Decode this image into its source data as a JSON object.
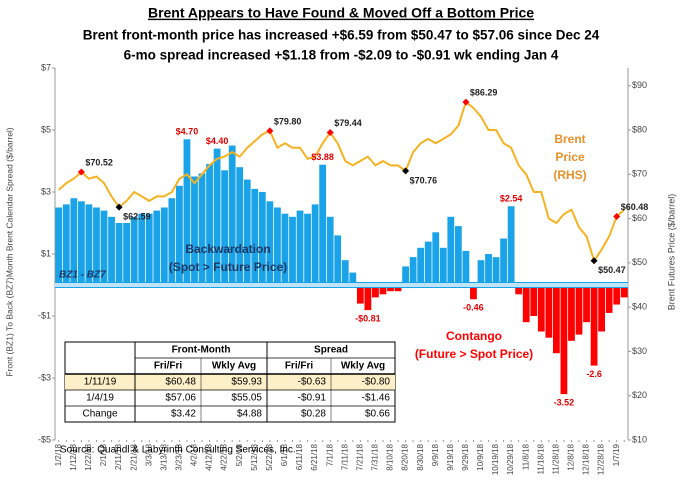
{
  "chart_data": {
    "type": "bar-line",
    "title": "Brent Appears to Have Found & Moved Off a Bottom Price",
    "subtitle": [
      "Brent front-month price has increased +$6.59 from $50.47 to $57.06 since Dec 24",
      "6-mo spread increased +$1.18 from -$2.09 to -$0.91 wk ending Jan 4"
    ],
    "ylabel": "Front (BZ1) To Back (BZ7)Month Brent Calendar Spread ($/barrel)",
    "y2label": "Brent Futures Price ($/barrel)",
    "categories": [
      "1/2/18",
      null,
      "1/12/18",
      null,
      "1/22/18",
      null,
      "2/1/18",
      null,
      "2/11/18",
      null,
      "2/21/18",
      null,
      "3/3/18",
      null,
      "3/13/18",
      null,
      "3/23/18",
      null,
      "4/2/18",
      null,
      "4/12/18",
      null,
      "4/22/18",
      null,
      "5/2/18",
      null,
      "5/12/18",
      null,
      "5/22/18",
      null,
      "6/1/18",
      null,
      "6/11/18",
      null,
      "6/21/18",
      null,
      "7/1/18",
      null,
      "7/11/18",
      null,
      "7/21/18",
      null,
      "7/31/18",
      null,
      "8/10/18",
      null,
      "8/20/18",
      null,
      "8/30/18",
      null,
      "9/9/18",
      null,
      "9/19/18",
      null,
      "9/29/18",
      null,
      "10/9/18",
      null,
      "10/19/18",
      null,
      "10/29/18",
      null,
      "11/8/18",
      null,
      "11/18/18",
      null,
      "11/28/18",
      null,
      "12/8/18",
      null,
      "12/18/18",
      null,
      "12/28/18",
      null,
      "1/7/19",
      null
    ],
    "series": [
      {
        "name": "BZ1 - BZ7",
        "type": "bar",
        "axis": "y",
        "color": "#1aa3e8",
        "negative_color": "#ff0000",
        "values": [
          2.5,
          2.6,
          2.8,
          2.7,
          2.6,
          2.5,
          2.4,
          2.2,
          2.0,
          2.0,
          2.2,
          2.3,
          2.3,
          2.4,
          2.5,
          2.8,
          3.2,
          4.7,
          3.5,
          3.6,
          3.9,
          4.4,
          3.7,
          4.5,
          3.8,
          3.4,
          3.1,
          3.0,
          2.7,
          2.5,
          2.3,
          2.2,
          2.4,
          2.3,
          2.6,
          3.88,
          2.2,
          1.6,
          0.8,
          0.4,
          -0.6,
          -0.81,
          -0.4,
          -0.3,
          -0.2,
          -0.2,
          0.6,
          0.9,
          1.2,
          1.4,
          1.7,
          1.2,
          2.2,
          1.9,
          1.1,
          -0.46,
          0.8,
          1.0,
          0.9,
          1.5,
          2.54,
          -0.3,
          -1.2,
          -1.0,
          -1.5,
          -1.7,
          -2.2,
          -3.52,
          -1.8,
          -1.6,
          -1.2,
          -2.6,
          -1.5,
          -0.9,
          -0.63,
          -0.4
        ],
        "value_labels": [
          null,
          null,
          null,
          null,
          null,
          null,
          null,
          null,
          null,
          null,
          null,
          null,
          null,
          null,
          null,
          null,
          null,
          "$4.70",
          null,
          null,
          null,
          "$4.40",
          null,
          null,
          null,
          null,
          null,
          null,
          null,
          null,
          null,
          null,
          null,
          null,
          null,
          "$3.88",
          null,
          null,
          null,
          null,
          null,
          "-$0.81",
          null,
          null,
          null,
          null,
          null,
          null,
          null,
          null,
          null,
          null,
          null,
          null,
          null,
          "-0.46",
          null,
          null,
          null,
          null,
          "$2.54",
          null,
          null,
          null,
          null,
          null,
          null,
          "-3.52",
          null,
          null,
          null,
          "-2.6",
          null,
          null,
          null,
          null
        ]
      },
      {
        "name": "Brent Price (RHS)",
        "type": "line",
        "axis": "y2",
        "color": "#f5b321",
        "values": [
          66.5,
          68,
          69,
          70.52,
          69,
          69.5,
          68,
          65,
          62.59,
          64,
          66,
          65,
          64,
          65,
          65,
          66,
          69,
          70,
          68,
          70,
          72,
          73.5,
          74,
          75,
          74,
          76,
          77.5,
          79,
          79.8,
          76,
          77,
          76,
          76,
          73.5,
          74,
          77,
          79.44,
          77,
          73,
          72,
          73,
          74,
          72,
          73,
          72,
          72,
          70.76,
          75,
          77,
          78,
          77,
          78,
          79,
          81,
          86.29,
          85,
          83,
          80,
          80,
          77,
          76,
          72,
          70,
          66,
          66,
          60,
          59,
          61,
          62,
          58,
          56,
          50.47,
          53,
          56,
          60.48,
          62
        ],
        "value_labels": [
          null,
          null,
          null,
          "$70.52",
          null,
          null,
          null,
          null,
          "$62.59",
          null,
          null,
          null,
          null,
          null,
          null,
          null,
          null,
          null,
          null,
          null,
          null,
          null,
          null,
          null,
          null,
          null,
          null,
          null,
          "$79.80",
          null,
          null,
          null,
          null,
          null,
          null,
          null,
          "$79.44",
          null,
          null,
          null,
          null,
          null,
          null,
          null,
          null,
          null,
          "$70.76",
          null,
          null,
          null,
          null,
          null,
          null,
          null,
          "$86.29",
          null,
          null,
          null,
          null,
          null,
          null,
          null,
          null,
          null,
          null,
          null,
          null,
          null,
          null,
          null,
          null,
          "$50.47",
          null,
          null,
          "$60.48",
          null
        ]
      }
    ],
    "ylim": [
      -5,
      7
    ],
    "yticks": [
      {
        "value": -5,
        "label": "-$5"
      },
      {
        "value": -3,
        "label": "-$3"
      },
      {
        "value": -1,
        "label": "-$1"
      },
      {
        "value": 1,
        "label": "$1"
      },
      {
        "value": 3,
        "label": "$3"
      },
      {
        "value": 5,
        "label": "$5"
      },
      {
        "value": 7,
        "label": "$7"
      }
    ],
    "y2lim": [
      10,
      94
    ],
    "y2ticks": [
      {
        "value": 10,
        "label": "$10"
      },
      {
        "value": 20,
        "label": "$20"
      },
      {
        "value": 30,
        "label": "$30"
      },
      {
        "value": 40,
        "label": "$40"
      },
      {
        "value": 50,
        "label": "$50"
      },
      {
        "value": 60,
        "label": "$60"
      },
      {
        "value": 70,
        "label": "$70"
      },
      {
        "value": 80,
        "label": "$80"
      },
      {
        "value": 90,
        "label": "$90"
      }
    ],
    "annotations": {
      "backwardation": [
        "Backwardation",
        "(Spot > Future Price)"
      ],
      "contango": [
        "Contango",
        "(Future > Spot Price)"
      ],
      "brent": [
        "Brent",
        "Price",
        "(RHS)"
      ],
      "spread_label": "BZ1 - BZ7"
    },
    "source": "Source:  Quandl & Labyrinth Consulting Services, Inc.",
    "table": {
      "groups": [
        "Front-Month",
        "Spread"
      ],
      "header": [
        "Fri/Fri",
        "Wkly Avg",
        "Fri/Fri",
        "Wkly Avg"
      ],
      "rows": [
        [
          "1/11/19",
          "$60.48",
          "$59.93",
          "-$0.63",
          "-$0.80"
        ],
        [
          "1/4/19",
          "$57.06",
          "$55.05",
          "-$0.91",
          "-$1.46"
        ],
        [
          "Change",
          "$3.42",
          "$4.88",
          "$0.28",
          "$0.66"
        ]
      ]
    }
  }
}
